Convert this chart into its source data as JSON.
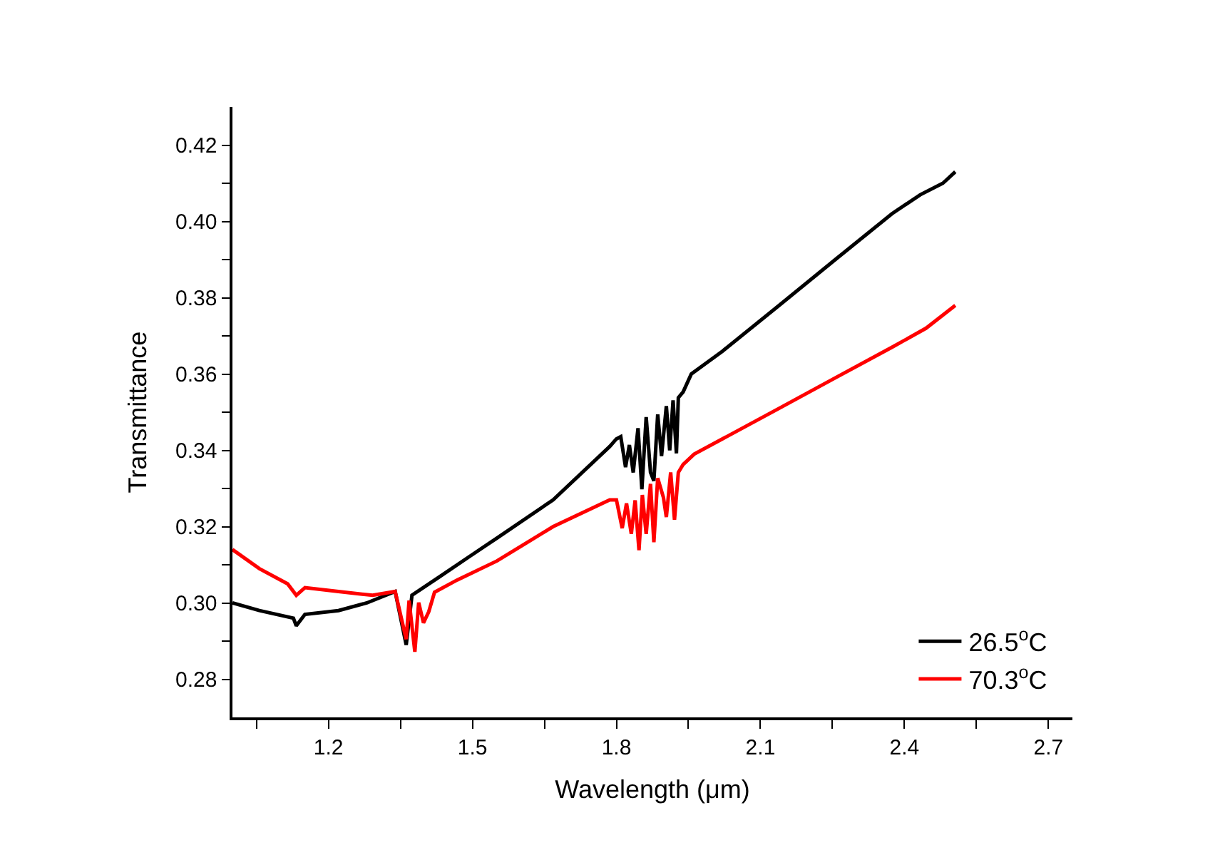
{
  "chart_data": {
    "type": "line",
    "xlabel": "Wavelength (μm)",
    "ylabel": "Transmittance",
    "xlim": [
      1.0,
      2.75
    ],
    "ylim": [
      0.27,
      0.43
    ],
    "xticks": [
      {
        "value": 1.05,
        "label": null
      },
      1.2,
      {
        "value": 1.35,
        "label": null
      },
      1.5,
      {
        "value": 1.65,
        "label": null
      },
      1.8,
      {
        "value": 1.95,
        "label": null
      },
      2.1,
      {
        "value": 2.25,
        "label": null
      },
      2.4,
      {
        "value": 2.55,
        "label": null
      },
      2.7
    ],
    "yticks": [
      0.28,
      {
        "value": 0.29,
        "label": null
      },
      {
        "value": 0.3,
        "label": "0.30"
      },
      {
        "value": 0.31,
        "label": null
      },
      0.32,
      {
        "value": 0.33,
        "label": null
      },
      0.34,
      {
        "value": 0.35,
        "label": null
      },
      0.36,
      {
        "value": 0.37,
        "label": null
      },
      0.38,
      {
        "value": 0.39,
        "label": null
      },
      {
        "value": 0.4,
        "label": "0.40"
      },
      {
        "value": 0.41,
        "label": null
      },
      0.42
    ],
    "legend": "bottom right",
    "marker": "none",
    "line_style": "solid",
    "series": [
      {
        "name": "26.5$^{o}$C",
        "color": "#000000",
        "x": [
          1.0,
          1.056,
          1.127,
          1.133,
          1.151,
          1.221,
          1.28,
          1.339,
          1.362,
          1.374,
          1.433,
          1.492,
          1.551,
          1.668,
          1.786,
          1.8,
          1.809,
          1.819,
          1.827,
          1.835,
          1.845,
          1.853,
          1.862,
          1.871,
          1.878,
          1.886,
          1.894,
          1.904,
          1.911,
          1.918,
          1.925,
          1.929,
          1.939,
          1.956,
          2.021,
          2.139,
          2.256,
          2.374,
          2.433,
          2.48,
          2.506
        ],
        "values": [
          0.3,
          0.298,
          0.296,
          0.294,
          0.297,
          0.298,
          0.3,
          0.303,
          0.289,
          0.302,
          0.307,
          0.312,
          0.317,
          0.327,
          0.341,
          0.343,
          0.3436,
          0.3356,
          0.3414,
          0.3342,
          0.3458,
          0.3298,
          0.3487,
          0.3342,
          0.332,
          0.3494,
          0.3385,
          0.3516,
          0.34,
          0.3531,
          0.3392,
          0.3538,
          0.3553,
          0.36,
          0.366,
          0.378,
          0.39,
          0.402,
          0.407,
          0.41,
          0.413
        ]
      },
      {
        "name": "70.3$^{o}$C",
        "color": "#ff0000",
        "x": [
          1.0,
          1.056,
          1.115,
          1.133,
          1.151,
          1.221,
          1.292,
          1.339,
          1.362,
          1.368,
          1.38,
          1.388,
          1.398,
          1.409,
          1.421,
          1.468,
          1.551,
          1.668,
          1.786,
          1.8,
          1.812,
          1.821,
          1.831,
          1.839,
          1.847,
          1.854,
          1.862,
          1.871,
          1.878,
          1.886,
          1.898,
          1.904,
          1.913,
          1.921,
          1.929,
          1.939,
          1.962,
          2.139,
          2.256,
          2.374,
          2.445,
          2.506
        ],
        "values": [
          0.314,
          0.309,
          0.305,
          0.302,
          0.304,
          0.303,
          0.302,
          0.303,
          0.2905,
          0.3006,
          0.2872,
          0.3001,
          0.2948,
          0.2977,
          0.3028,
          0.306,
          0.311,
          0.32,
          0.327,
          0.327,
          0.3196,
          0.3261,
          0.3181,
          0.3269,
          0.3138,
          0.3283,
          0.3181,
          0.3312,
          0.3159,
          0.3327,
          0.3276,
          0.3225,
          0.3342,
          0.3218,
          0.3342,
          0.3363,
          0.339,
          0.351,
          0.359,
          0.367,
          0.372,
          0.378
        ]
      }
    ]
  }
}
